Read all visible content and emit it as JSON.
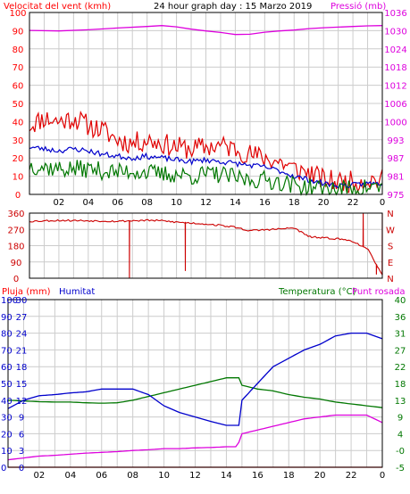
{
  "header": {
    "left_label": "Velocitat del vent (kmh)",
    "title": "24 hour graph day : 15 Marzo 2019",
    "right_label": "Pressió (mb)"
  },
  "colors": {
    "red": "#ff0000",
    "wind_red": "#e00000",
    "blue": "#0000cc",
    "green": "#007700",
    "magenta": "#dd00dd",
    "dir": "#cc0000",
    "grid": "#cccccc"
  },
  "chart_data": [
    {
      "type": "line",
      "title": "24 hour graph day : 15 Marzo 2019",
      "ylabel_left": "Velocitat del vent (kmh)",
      "ylabel_right": "Pressió (mb)",
      "x_ticks": [
        "02",
        "04",
        "06",
        "08",
        "10",
        "12",
        "14",
        "16",
        "18",
        "20",
        "22",
        "0"
      ],
      "x_range_hours": [
        0,
        24
      ],
      "ylim_left": [
        0,
        100
      ],
      "yticks_left": [
        "0",
        "10",
        "20",
        "30",
        "40",
        "50",
        "60",
        "70",
        "80",
        "90",
        "100"
      ],
      "ylim_right": [
        975,
        1036
      ],
      "yticks_right": [
        "975",
        "981",
        "987",
        "993",
        "1000",
        "1006",
        "1012",
        "1018",
        "1024",
        "1030",
        "1036"
      ],
      "series": [
        {
          "name": "",
          "axis": "left",
          "color": "#e00000",
          "kind": "noisy",
          "base": [
            [
              0,
              38
            ],
            [
              1,
              42
            ],
            [
              2,
              40
            ],
            [
              3,
              42
            ],
            [
              4,
              38
            ],
            [
              5,
              35
            ],
            [
              6,
              30
            ],
            [
              7,
              28
            ],
            [
              8,
              30
            ],
            [
              9,
              28
            ],
            [
              10,
              26
            ],
            [
              11,
              25
            ],
            [
              12,
              26
            ],
            [
              13,
              27
            ],
            [
              14,
              25
            ],
            [
              15,
              22
            ],
            [
              16,
              20
            ],
            [
              17,
              18
            ],
            [
              18,
              14
            ],
            [
              19,
              12
            ],
            [
              20,
              8
            ],
            [
              21,
              7
            ],
            [
              22,
              7
            ],
            [
              23,
              8
            ],
            [
              24,
              8
            ]
          ],
          "noise": 6,
          "seed": 11
        },
        {
          "name": "",
          "axis": "left",
          "color": "#0000cc",
          "kind": "noisy",
          "base": [
            [
              0,
              26
            ],
            [
              1,
              25
            ],
            [
              2,
              24
            ],
            [
              3,
              25
            ],
            [
              4,
              24
            ],
            [
              5,
              22
            ],
            [
              6,
              21
            ],
            [
              7,
              20
            ],
            [
              8,
              21
            ],
            [
              9,
              20
            ],
            [
              10,
              19
            ],
            [
              11,
              18
            ],
            [
              12,
              19
            ],
            [
              13,
              18
            ],
            [
              14,
              17
            ],
            [
              15,
              16
            ],
            [
              16,
              15
            ],
            [
              17,
              13
            ],
            [
              18,
              10
            ],
            [
              19,
              8
            ],
            [
              20,
              6
            ],
            [
              21,
              5
            ],
            [
              22,
              5
            ],
            [
              23,
              6
            ],
            [
              24,
              6
            ]
          ],
          "noise": 1.5,
          "seed": 23
        },
        {
          "name": "",
          "axis": "left",
          "color": "#007700",
          "kind": "noisy",
          "base": [
            [
              0,
              16
            ],
            [
              1,
              15
            ],
            [
              2,
              14
            ],
            [
              3,
              14
            ],
            [
              4,
              14
            ],
            [
              5,
              13
            ],
            [
              6,
              12
            ],
            [
              7,
              13
            ],
            [
              8,
              12
            ],
            [
              9,
              11
            ],
            [
              10,
              11
            ],
            [
              11,
              10
            ],
            [
              12,
              11
            ],
            [
              13,
              11
            ],
            [
              14,
              9
            ],
            [
              15,
              8
            ],
            [
              16,
              8
            ],
            [
              17,
              7
            ],
            [
              18,
              5
            ],
            [
              19,
              4
            ],
            [
              20,
              3
            ],
            [
              21,
              3
            ],
            [
              22,
              3
            ],
            [
              23,
              4
            ],
            [
              24,
              4
            ]
          ],
          "noise": 5,
          "seed": 37
        },
        {
          "name": "",
          "axis": "right",
          "color": "#dd00dd",
          "kind": "line",
          "points": [
            [
              0,
              1030
            ],
            [
              2,
              1029.8
            ],
            [
              4,
              1030.2
            ],
            [
              6,
              1030.8
            ],
            [
              8,
              1031.3
            ],
            [
              9,
              1031.6
            ],
            [
              10,
              1031.2
            ],
            [
              11,
              1030.4
            ],
            [
              12,
              1029.8
            ],
            [
              13,
              1029.3
            ],
            [
              14,
              1028.6
            ],
            [
              15,
              1028.7
            ],
            [
              16,
              1029.4
            ],
            [
              17,
              1029.8
            ],
            [
              18,
              1030.1
            ],
            [
              19,
              1030.6
            ],
            [
              20,
              1030.9
            ],
            [
              21,
              1031.1
            ],
            [
              22,
              1031.3
            ],
            [
              23,
              1031.5
            ],
            [
              24,
              1031.6
            ]
          ]
        }
      ]
    },
    {
      "type": "line",
      "ylim": [
        0,
        360
      ],
      "yticks_left": [
        "0",
        "90",
        "180",
        "270",
        "360"
      ],
      "yticks_right": [
        "N",
        "E",
        "S",
        "W",
        "N"
      ],
      "x_range_hours": [
        0,
        24
      ],
      "series": [
        {
          "name": "",
          "color": "#cc0000",
          "kind": "noisy",
          "base": [
            [
              0,
              315
            ],
            [
              2,
              320
            ],
            [
              4,
              318
            ],
            [
              6,
              315
            ],
            [
              7,
              318
            ],
            [
              8,
              320
            ],
            [
              9,
              318
            ],
            [
              10,
              310
            ],
            [
              11,
              305
            ],
            [
              12,
              300
            ],
            [
              13,
              292
            ],
            [
              14,
              282
            ],
            [
              15,
              262
            ],
            [
              16,
              268
            ],
            [
              17,
              272
            ],
            [
              18,
              278
            ],
            [
              19,
              230
            ],
            [
              20,
              222
            ],
            [
              21,
              218
            ],
            [
              22,
              205
            ],
            [
              23,
              160
            ],
            [
              24,
              20
            ]
          ],
          "noise": 5,
          "seed": 53,
          "spikes": [
            [
              6.8,
              0
            ],
            [
              10.6,
              40
            ],
            [
              22.7,
              360
            ],
            [
              23.6,
              20
            ],
            [
              24,
              360
            ]
          ]
        }
      ]
    },
    {
      "type": "line",
      "x_ticks": [
        "02",
        "04",
        "06",
        "08",
        "10",
        "12",
        "14",
        "16",
        "18",
        "20",
        "22",
        "0"
      ],
      "x_range_hours": [
        0,
        24
      ],
      "labels": {
        "rain": "Pluja (mm)",
        "humidity": "Humitat",
        "temp": "Temperatura (°C)",
        "dew": "Punt rosada"
      },
      "yticks_rain": [
        "0",
        "10",
        "20",
        "30",
        "40",
        "50",
        "60",
        "70",
        "80",
        "90",
        "100"
      ],
      "yticks_hum": [
        "0",
        "3",
        "6",
        "9",
        "12",
        "15",
        "18",
        "21",
        "24",
        "27",
        "30"
      ],
      "yticks_temp": [
        "-5",
        "-0",
        "4",
        "9",
        "13",
        "18",
        "22",
        "27",
        "31",
        "36",
        "40"
      ],
      "ylim_temp": [
        -5,
        40
      ],
      "series": [
        {
          "name": "Punt rosada",
          "color": "#dd00dd",
          "points": [
            [
              0,
              -3
            ],
            [
              1,
              -2.5
            ],
            [
              2,
              -2
            ],
            [
              3,
              -1.8
            ],
            [
              4,
              -1.5
            ],
            [
              5,
              -1.2
            ],
            [
              6,
              -1
            ],
            [
              7,
              -0.8
            ],
            [
              8,
              -0.5
            ],
            [
              9,
              -0.3
            ],
            [
              10,
              0
            ],
            [
              11,
              0
            ],
            [
              12,
              0.2
            ],
            [
              13,
              0.3
            ],
            [
              14,
              0.5
            ],
            [
              14.7,
              0.5
            ],
            [
              15,
              4
            ],
            [
              16,
              5
            ],
            [
              17,
              6
            ],
            [
              18,
              7
            ],
            [
              19,
              8
            ],
            [
              20,
              8.5
            ],
            [
              21,
              9
            ],
            [
              22,
              9
            ],
            [
              23,
              9
            ],
            [
              24,
              7
            ]
          ]
        },
        {
          "name": "Temperatura (°C)",
          "color": "#007700",
          "points": [
            [
              0,
              13
            ],
            [
              1,
              12.8
            ],
            [
              2,
              12.6
            ],
            [
              3,
              12.5
            ],
            [
              4,
              12.5
            ],
            [
              5,
              12.3
            ],
            [
              6,
              12.2
            ],
            [
              7,
              12.3
            ],
            [
              8,
              13
            ],
            [
              9,
              14
            ],
            [
              10,
              15
            ],
            [
              11,
              16
            ],
            [
              12,
              17
            ],
            [
              13,
              18
            ],
            [
              14,
              19
            ],
            [
              14.8,
              19
            ],
            [
              15,
              17
            ],
            [
              16,
              16
            ],
            [
              17,
              15.5
            ],
            [
              18,
              14.5
            ],
            [
              19,
              13.8
            ],
            [
              20,
              13.3
            ],
            [
              21,
              12.5
            ],
            [
              22,
              12
            ],
            [
              23,
              11.5
            ],
            [
              24,
              11
            ]
          ]
        },
        {
          "name": "Humitat",
          "color": "#0000cc",
          "points": [
            [
              0,
              10.5
            ],
            [
              1,
              12
            ],
            [
              2,
              12.8
            ],
            [
              3,
              13
            ],
            [
              4,
              13.3
            ],
            [
              5,
              13.5
            ],
            [
              6,
              14
            ],
            [
              7,
              14
            ],
            [
              8,
              14
            ],
            [
              9,
              13
            ],
            [
              10,
              11
            ],
            [
              11,
              9.8
            ],
            [
              12,
              9
            ],
            [
              13,
              8.2
            ],
            [
              14,
              7.5
            ],
            [
              14.8,
              7.5
            ],
            [
              15,
              12
            ],
            [
              16,
              15
            ],
            [
              17,
              18
            ],
            [
              18,
              19.5
            ],
            [
              19,
              21
            ],
            [
              20,
              22
            ],
            [
              21,
              23.5
            ],
            [
              22,
              24
            ],
            [
              23,
              24
            ],
            [
              24,
              23
            ]
          ]
        },
        {
          "name": "Pluja (mm)",
          "color": "#ff0000",
          "points": [
            [
              0,
              0
            ],
            [
              24,
              0
            ]
          ]
        }
      ]
    }
  ]
}
